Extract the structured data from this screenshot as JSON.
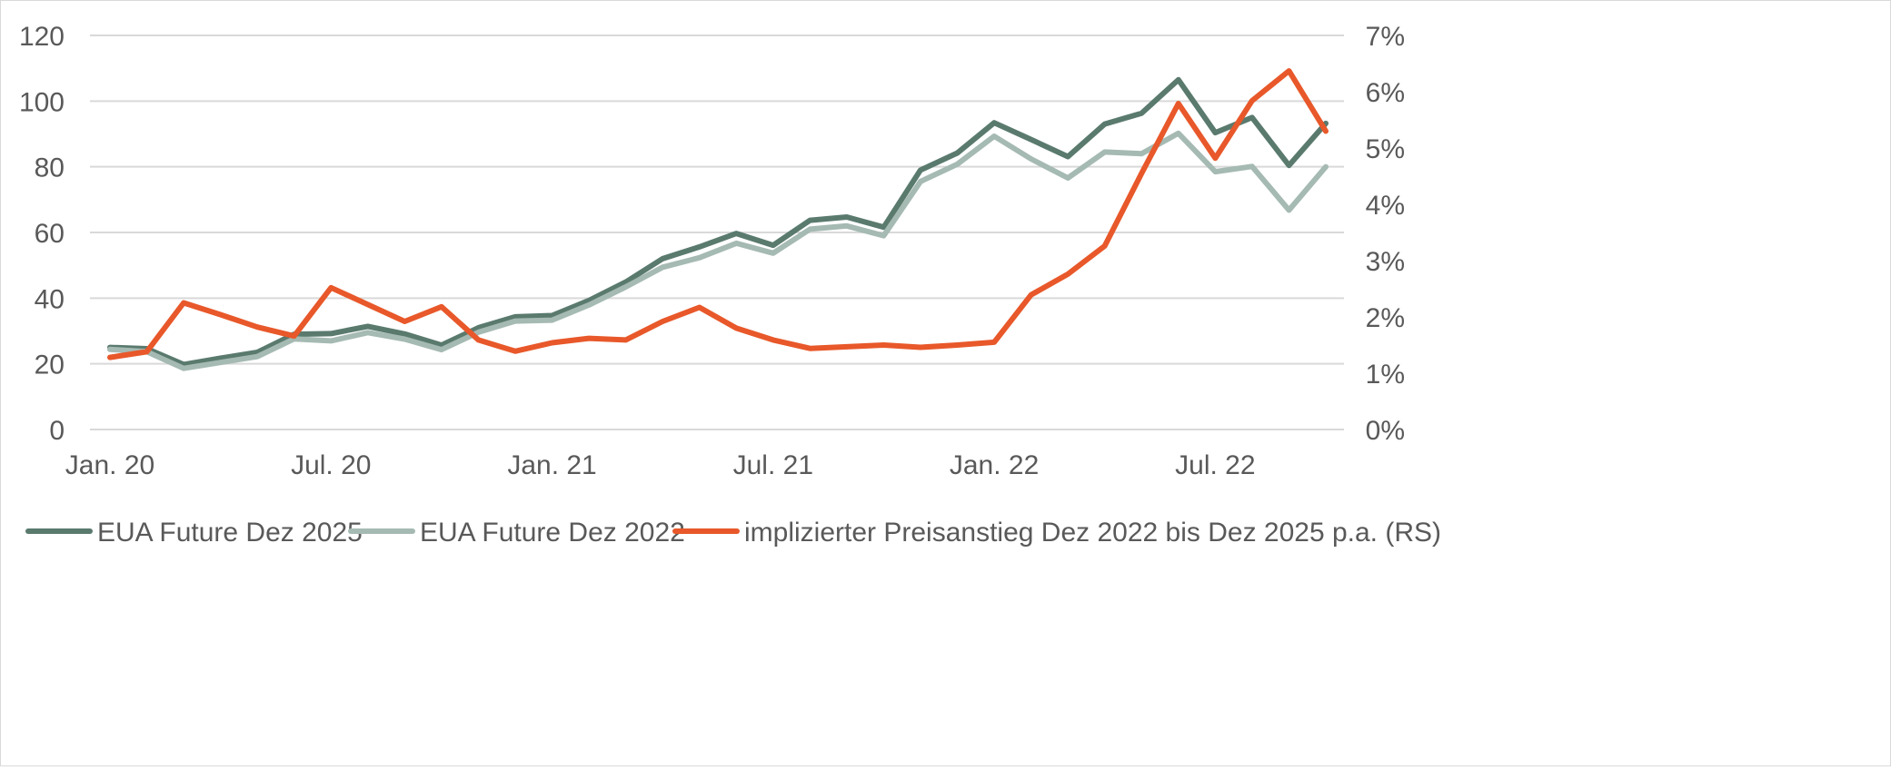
{
  "chart_data": {
    "type": "line",
    "x": [
      "Jan. 20",
      "Feb. 20",
      "Mrz. 20",
      "Apr. 20",
      "Mai. 20",
      "Jun. 20",
      "Jul. 20",
      "Aug. 20",
      "Sep. 20",
      "Okt. 20",
      "Nov. 20",
      "Dez. 20",
      "Jan. 21",
      "Feb. 21",
      "Mrz. 21",
      "Apr. 21",
      "Mai. 21",
      "Jun. 21",
      "Jul. 21",
      "Aug. 21",
      "Sep. 21",
      "Okt. 21",
      "Nov. 21",
      "Dez. 21",
      "Jan. 22",
      "Feb. 22",
      "Mrz. 22",
      "Apr. 22",
      "Mai. 22",
      "Jun. 22",
      "Jul. 22",
      "Aug. 22",
      "Sep. 22",
      "Okt. 22"
    ],
    "x_tick_labels": [
      {
        "index": 0,
        "label": "Jan. 20"
      },
      {
        "index": 6,
        "label": "Jul. 20"
      },
      {
        "index": 12,
        "label": "Jan. 21"
      },
      {
        "index": 18,
        "label": "Jul. 21"
      },
      {
        "index": 24,
        "label": "Jan. 22"
      },
      {
        "index": 30,
        "label": "Jul. 22"
      }
    ],
    "y_left": {
      "min": 0,
      "max": 120,
      "ticks": [
        "0",
        "20",
        "40",
        "60",
        "80",
        "100",
        "120"
      ]
    },
    "y_right": {
      "min": 0,
      "max": 7,
      "ticks": [
        "0%",
        "1%",
        "2%",
        "3%",
        "4%",
        "5%",
        "6%",
        "7%"
      ]
    },
    "grid": "horizontal",
    "legend_position": "bottom",
    "series": [
      {
        "name": "EUA Future Dez 2025",
        "axis": "left",
        "color": "#5a7a6e",
        "values": [
          25.0,
          24.6,
          19.8,
          21.7,
          23.5,
          29.0,
          29.2,
          31.4,
          29.1,
          25.7,
          31.0,
          34.3,
          34.7,
          39.3,
          44.9,
          52.0,
          55.6,
          59.7,
          56.1,
          63.7,
          64.7,
          61.6,
          79.0,
          84.2,
          93.4,
          88.3,
          83.1,
          93.0,
          96.3,
          106.5,
          90.4,
          95.0,
          80.4,
          93.2
        ]
      },
      {
        "name": "EUA Future Dez 2022",
        "axis": "left",
        "color": "#a5bab2",
        "values": [
          24.4,
          23.7,
          18.6,
          20.4,
          22.2,
          27.6,
          27.0,
          29.5,
          27.5,
          24.3,
          29.6,
          33.0,
          33.3,
          37.9,
          43.4,
          49.4,
          52.3,
          56.7,
          53.7,
          61.0,
          62.0,
          59.0,
          75.5,
          80.8,
          89.3,
          82.4,
          76.6,
          84.5,
          84.0,
          90.2,
          78.5,
          80.1,
          66.8,
          80.0
        ]
      },
      {
        "name": "implizierter Preisanstieg Dez 2022 bis Dez 2025 p.a. (RS)",
        "axis": "right",
        "color": "#e8582a",
        "values": [
          1.28,
          1.38,
          2.25,
          2.04,
          1.82,
          1.66,
          2.52,
          2.22,
          1.92,
          2.18,
          1.59,
          1.39,
          1.54,
          1.62,
          1.59,
          1.92,
          2.17,
          1.8,
          1.59,
          1.44,
          1.47,
          1.5,
          1.46,
          1.5,
          1.55,
          2.39,
          2.76,
          3.26,
          4.55,
          5.79,
          4.82,
          5.84,
          6.37,
          5.3
        ]
      }
    ]
  }
}
